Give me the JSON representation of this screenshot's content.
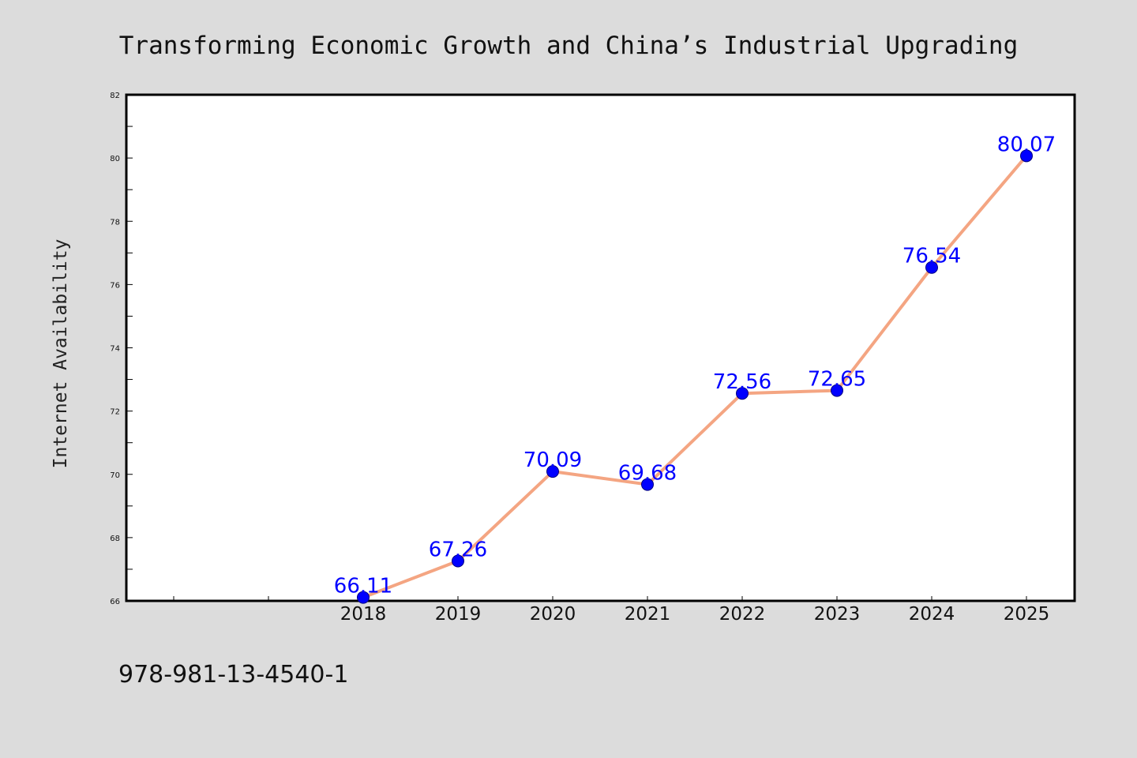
{
  "chart_data": {
    "type": "line",
    "title": "Transforming Economic Growth and China’s Industrial Upgrading",
    "xlabel": "",
    "ylabel": "Internet Availability",
    "categories": [
      "2018",
      "2019",
      "2020",
      "2021",
      "2022",
      "2023",
      "2024",
      "2025"
    ],
    "x_axis_extra_leading_slots": 2,
    "series": [
      {
        "values": [
          66.11,
          67.26,
          70.09,
          69.68,
          72.56,
          72.65,
          76.54,
          80.07
        ],
        "data_labels": [
          "66.11",
          "67.26",
          "70.09",
          "69.68",
          "72.56",
          "72.65",
          "76.54",
          "80.07"
        ]
      }
    ],
    "ylim": [
      66,
      82
    ],
    "yticks": [
      "66",
      "68",
      "70",
      "72",
      "74",
      "76",
      "78",
      "80",
      "82"
    ],
    "grid": false,
    "legend": "none",
    "colors": {
      "line": "#f4a582",
      "marker": "#0000ff",
      "marker_edge": "#000080",
      "data_label": "#0000ff",
      "plot_background": "#ffffff",
      "page_background": "#dcdcdc"
    }
  },
  "footer": {
    "isbn": "978-981-13-4540-1"
  }
}
